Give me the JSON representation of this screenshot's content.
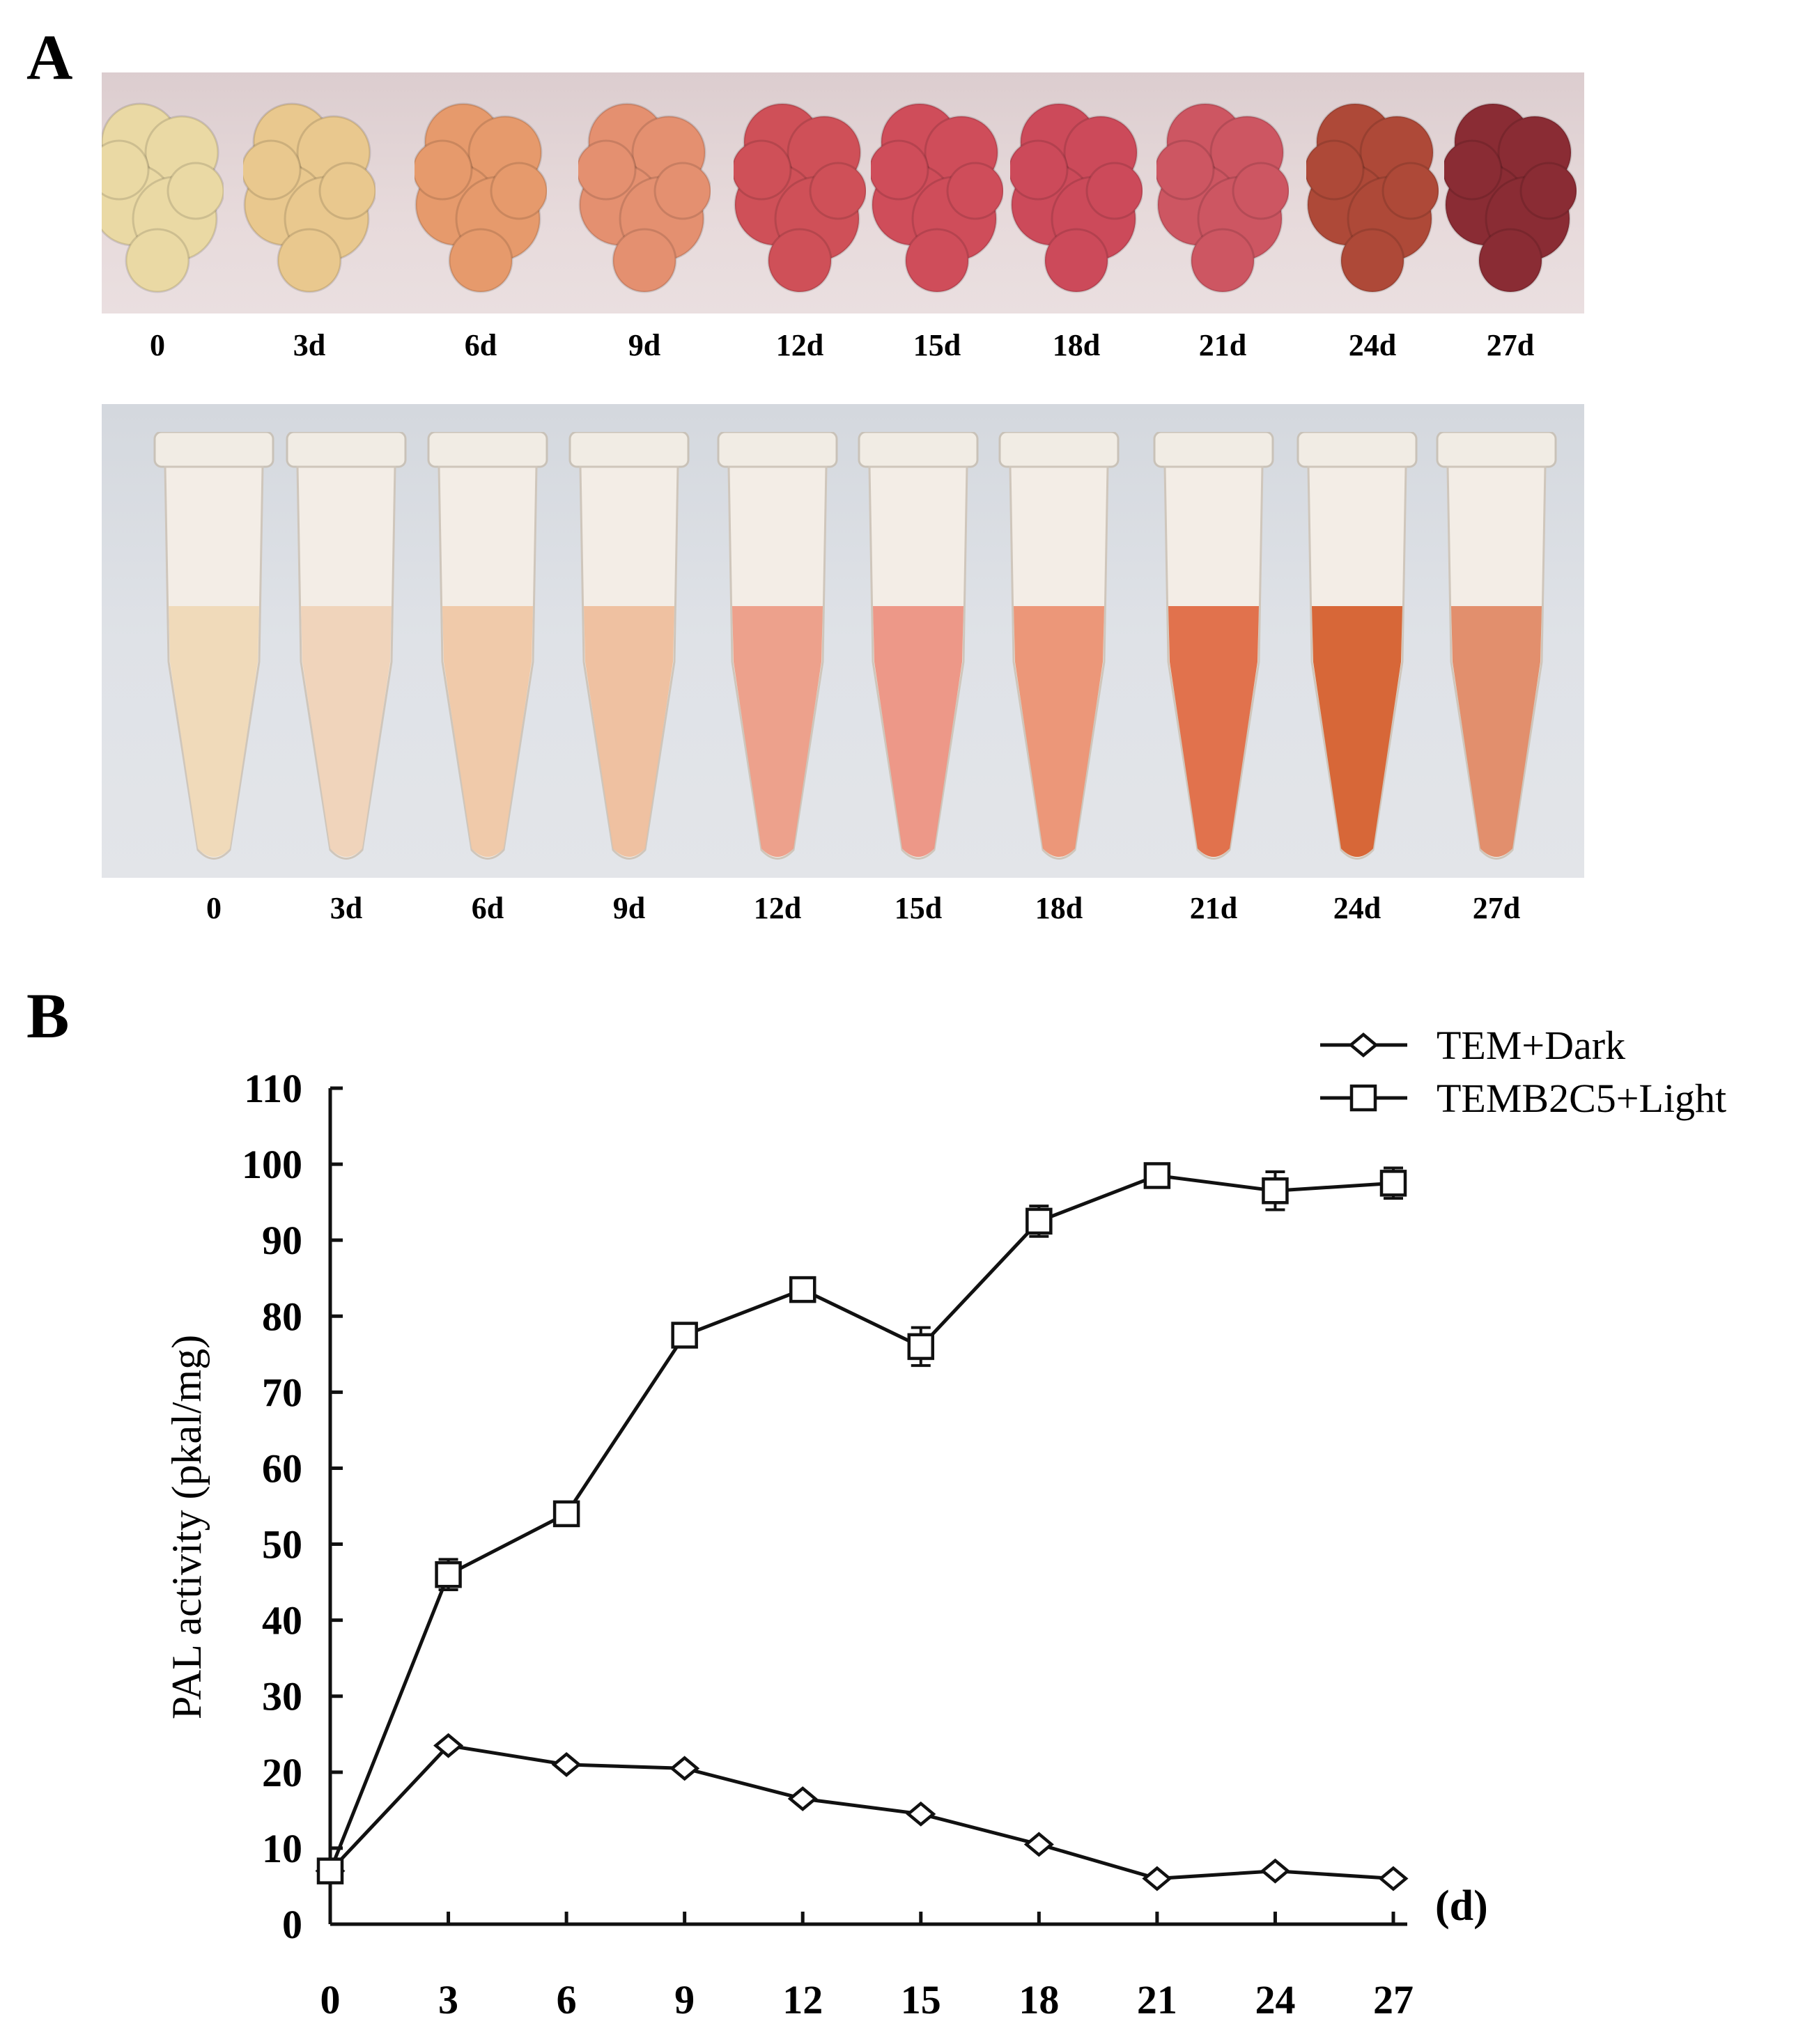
{
  "panel_a": {
    "letter": "A",
    "callus_labels": [
      "0",
      "3d",
      "6d",
      "9d",
      "12d",
      "15d",
      "18d",
      "21d",
      "24d",
      "27d"
    ],
    "tube_labels": [
      "0",
      "3d",
      "6d",
      "9d",
      "12d",
      "15d",
      "18d",
      "21d",
      "24d",
      "27d"
    ],
    "callus_colors": [
      "#ead9a4",
      "#e9c88e",
      "#e69a6c",
      "#e49070",
      "#cf5058",
      "#cf4d5a",
      "#cc4a5a",
      "#cd5662",
      "#ae4938",
      "#8a2c34"
    ],
    "tube_colors": [
      "#efd9b7",
      "#efd3b8",
      "#efc8a6",
      "#eebf9d",
      "#ec9d87",
      "#ec9483",
      "#eb9273",
      "#df6c45",
      "#d5602e",
      "#e08a66"
    ]
  },
  "panel_b": {
    "letter": "B",
    "chart_data": {
      "type": "line",
      "x": [
        0,
        3,
        6,
        9,
        12,
        15,
        18,
        21,
        24,
        27
      ],
      "xticks": [
        "0",
        "3",
        "6",
        "9",
        "12",
        "15",
        "18",
        "21",
        "24",
        "27"
      ],
      "xunit": "(d)",
      "ylabel": "PAL activity (pkal/mg)",
      "yticks": [
        "0",
        "10",
        "20",
        "30",
        "40",
        "50",
        "60",
        "70",
        "80",
        "90",
        "100",
        "110"
      ],
      "ylim": [
        0,
        110
      ],
      "xlim": [
        0,
        27
      ],
      "series": [
        {
          "name": "TEM+Dark",
          "marker": "diamond",
          "values": [
            7,
            23.5,
            21,
            20.5,
            16.5,
            14.5,
            10.5,
            6,
            7,
            6
          ],
          "errors": [
            0,
            0,
            0,
            0,
            0,
            0,
            0,
            0,
            0,
            0
          ]
        },
        {
          "name": "TEMB2C5+Light",
          "marker": "square",
          "values": [
            7,
            46,
            54,
            77.5,
            83.5,
            76,
            92.5,
            98.5,
            96.5,
            97.5
          ],
          "errors": [
            0,
            2,
            1,
            1,
            1.5,
            2.5,
            2,
            1.5,
            2.5,
            2
          ]
        }
      ],
      "legend_position": "top-right"
    }
  }
}
